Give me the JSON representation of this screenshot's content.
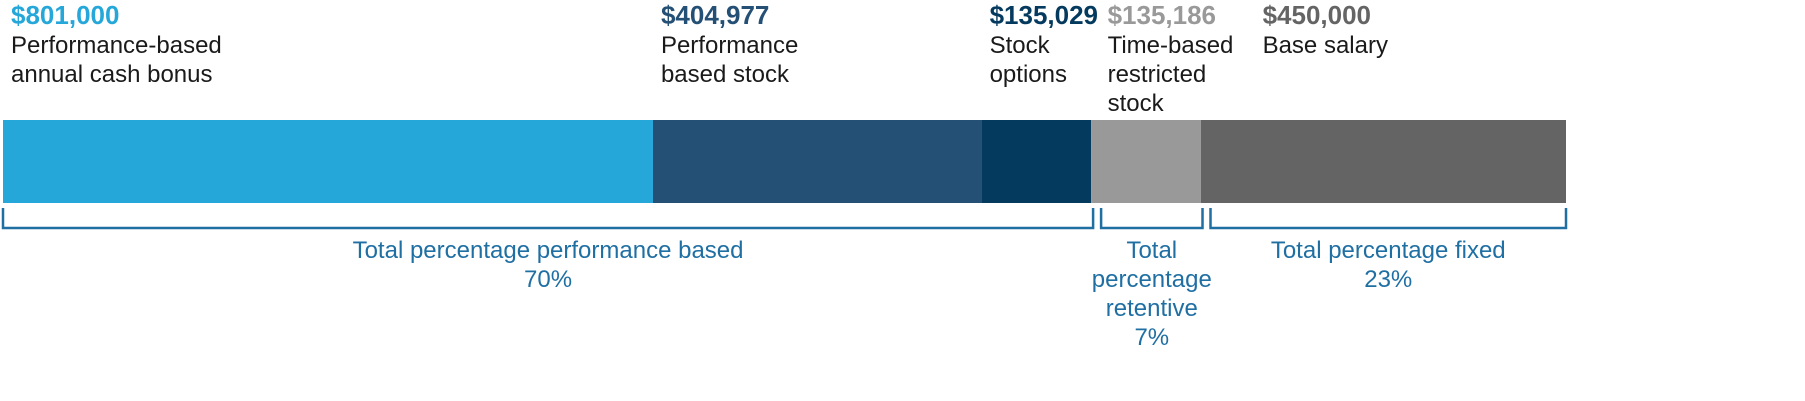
{
  "chart_data": {
    "type": "bar",
    "orientation": "horizontal",
    "stacked": true,
    "series": [
      {
        "name": "Performance-based annual cash bonus",
        "color": "#25a7da",
        "values": [
          801000
        ],
        "value_labels": [
          "$801,000"
        ]
      },
      {
        "name": "Performance based stock",
        "color": "#245076",
        "values": [
          404977
        ],
        "value_labels": [
          "$404,977"
        ]
      },
      {
        "name": "Stock options",
        "color": "#053a5f",
        "values": [
          135029
        ],
        "value_labels": [
          "$135,029"
        ]
      },
      {
        "name": "Time-based restricted stock",
        "color": "#999999",
        "values": [
          135186
        ],
        "value_labels": [
          "$135,186"
        ]
      },
      {
        "name": "Base salary",
        "color": "#646464",
        "values": [
          450000
        ],
        "value_labels": [
          "$450,000"
        ]
      }
    ],
    "groups": {
      "names": [
        "Total percentage performance based",
        "Total percentage retentive",
        "Total percentage fixed"
      ],
      "values": [
        70,
        7,
        23
      ],
      "value_labels": [
        "70%",
        "7%",
        "23%"
      ],
      "color": "#1f6fa3"
    }
  }
}
